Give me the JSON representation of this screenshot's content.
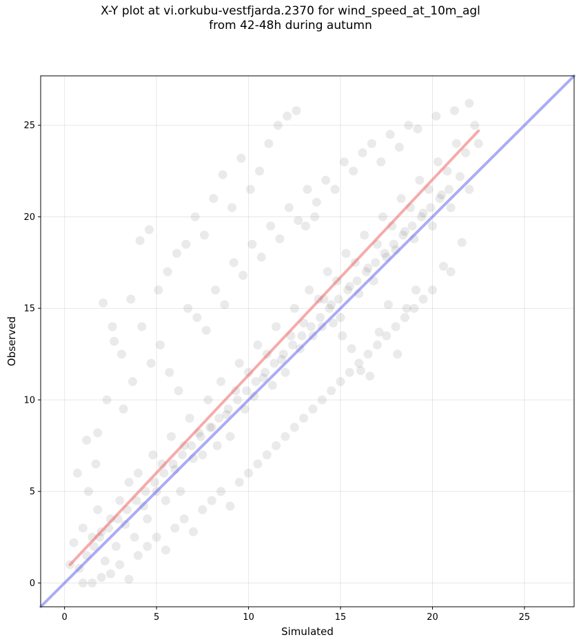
{
  "chart_data": {
    "type": "scatter",
    "title": "X-Y plot at vi.orkubu-vestfjarda.2370 for wind_speed_at_10m_agl",
    "subtitle": "from 42-48h during autumn",
    "xlabel": "Simulated",
    "ylabel": "Observed",
    "xlim": [
      -1.3,
      27.7
    ],
    "ylim": [
      -1.3,
      27.7
    ],
    "xticks": [
      0,
      5,
      10,
      15,
      20,
      25
    ],
    "yticks": [
      0,
      5,
      10,
      15,
      20,
      25
    ],
    "grid": true,
    "point_color": "#555555",
    "point_opacity": 0.12,
    "series": [
      {
        "type": "line",
        "color": "#6666ee",
        "x": [
          -1.3,
          27.7
        ],
        "y": [
          -1.3,
          27.7
        ]
      },
      {
        "type": "line",
        "color": "#ee6666",
        "x": [
          0.3,
          22.5
        ],
        "y": [
          1.0,
          24.7
        ]
      }
    ],
    "points": {
      "x": [
        0.3,
        0.5,
        0.8,
        1.0,
        1.2,
        1.5,
        1.8,
        2.0,
        2.2,
        2.5,
        2.8,
        3.0,
        3.3,
        3.5,
        3.8,
        4.0,
        4.3,
        4.5,
        4.8,
        5.0,
        5.3,
        5.5,
        5.8,
        6.0,
        6.3,
        6.5,
        6.8,
        7.0,
        7.3,
        7.5,
        7.8,
        8.0,
        8.3,
        8.5,
        8.8,
        9.0,
        9.3,
        9.5,
        9.8,
        10.0,
        10.3,
        10.5,
        10.8,
        11.0,
        11.3,
        11.5,
        11.8,
        12.0,
        12.3,
        12.5,
        12.8,
        13.0,
        13.3,
        13.5,
        13.8,
        14.0,
        14.3,
        14.5,
        14.8,
        15.0,
        15.3,
        15.5,
        15.8,
        16.0,
        16.3,
        16.5,
        16.8,
        17.0,
        17.3,
        17.5,
        17.8,
        18.0,
        18.3,
        18.5,
        18.8,
        19.0,
        19.3,
        19.5,
        19.8,
        20.0,
        20.3,
        20.5,
        20.8,
        21.0,
        21.3,
        21.5,
        21.8,
        22.0,
        22.3,
        22.5,
        1.0,
        1.5,
        2.0,
        2.5,
        3.0,
        3.5,
        4.0,
        4.5,
        5.0,
        5.5,
        6.0,
        6.5,
        7.0,
        7.5,
        8.0,
        8.5,
        9.0,
        9.5,
        10.0,
        10.5,
        11.0,
        11.5,
        12.0,
        12.5,
        13.0,
        13.5,
        14.0,
        14.5,
        15.0,
        15.5,
        16.0,
        16.5,
        17.0,
        17.5,
        18.0,
        18.5,
        19.0,
        19.5,
        20.0,
        21.0,
        1.2,
        1.8,
        2.3,
        2.7,
        3.2,
        3.7,
        4.2,
        4.7,
        5.2,
        5.7,
        6.2,
        6.7,
        7.2,
        7.7,
        8.2,
        8.7,
        9.2,
        9.7,
        10.2,
        10.7,
        11.2,
        11.7,
        12.2,
        12.7,
        13.2,
        13.7,
        14.2,
        14.7,
        15.2,
        15.7,
        16.2,
        16.7,
        17.2,
        17.7,
        18.2,
        18.7,
        19.2,
        20.2,
        21.2,
        22.0,
        0.7,
        1.3,
        1.7,
        2.1,
        2.6,
        3.1,
        3.6,
        4.1,
        4.6,
        5.1,
        5.6,
        6.1,
        6.6,
        7.1,
        7.6,
        8.1,
        8.6,
        9.1,
        9.6,
        10.1,
        10.6,
        11.1,
        11.6,
        12.1,
        12.6,
        13.1,
        13.6,
        14.1,
        14.6,
        15.1,
        15.6,
        16.1,
        16.6,
        17.1,
        17.6,
        18.1,
        18.6,
        19.1,
        20.6,
        21.6,
        1.6,
        2.4,
        3.4,
        4.4,
        5.4,
        6.4,
        7.4,
        8.4,
        9.4,
        10.4,
        11.4,
        12.4,
        13.4,
        14.4,
        15.4,
        16.4,
        17.4,
        18.4,
        19.4,
        20.4,
        1.9,
        2.9,
        3.9,
        4.9,
        5.9,
        6.9,
        7.9,
        8.9,
        9.9,
        10.9,
        11.9,
        12.9,
        13.9,
        14.9,
        15.9,
        16.9,
        17.9,
        18.9,
        19.9,
        20.9
      ],
      "y": [
        1.0,
        2.2,
        0.8,
        3.0,
        1.5,
        2.5,
        4.0,
        2.8,
        1.2,
        3.5,
        2.0,
        4.5,
        3.2,
        5.5,
        2.5,
        6.0,
        4.2,
        3.5,
        7.0,
        5.0,
        6.5,
        4.5,
        8.0,
        6.2,
        5.0,
        7.5,
        9.0,
        6.8,
        8.2,
        7.0,
        10.0,
        8.5,
        7.5,
        11.0,
        9.2,
        8.0,
        10.5,
        12.0,
        9.5,
        11.5,
        10.2,
        13.0,
        11.2,
        12.5,
        10.8,
        14.0,
        12.2,
        11.5,
        13.5,
        15.0,
        12.8,
        14.2,
        16.0,
        13.5,
        15.5,
        14.0,
        17.0,
        15.2,
        16.5,
        14.5,
        18.0,
        16.2,
        17.5,
        15.8,
        19.0,
        17.2,
        16.5,
        18.5,
        20.0,
        17.8,
        19.5,
        18.2,
        21.0,
        19.2,
        20.5,
        18.8,
        22.0,
        20.2,
        21.5,
        19.5,
        23.0,
        21.2,
        22.5,
        20.5,
        24.0,
        22.2,
        23.5,
        21.5,
        25.0,
        24.0,
        0.0,
        0.0,
        0.3,
        0.5,
        1.0,
        0.2,
        1.5,
        2.0,
        2.5,
        1.8,
        3.0,
        3.5,
        2.8,
        4.0,
        4.5,
        5.0,
        4.2,
        5.5,
        6.0,
        6.5,
        7.0,
        7.5,
        8.0,
        8.5,
        9.0,
        9.5,
        10.0,
        10.5,
        11.0,
        11.5,
        12.0,
        12.5,
        13.0,
        13.5,
        14.0,
        14.5,
        15.0,
        15.5,
        16.0,
        17.0,
        7.8,
        8.2,
        10.0,
        13.2,
        9.5,
        11.0,
        14.0,
        12.0,
        13.0,
        11.5,
        10.5,
        15.0,
        14.5,
        13.8,
        16.0,
        15.2,
        17.5,
        16.8,
        18.5,
        17.8,
        19.5,
        18.8,
        20.5,
        19.8,
        21.5,
        20.8,
        22.0,
        21.5,
        23.0,
        22.5,
        23.5,
        24.0,
        23.0,
        24.5,
        23.8,
        25.0,
        24.8,
        25.5,
        25.8,
        26.2,
        6.0,
        5.0,
        6.5,
        15.3,
        14.0,
        12.5,
        15.5,
        18.7,
        19.3,
        16.0,
        17.0,
        18.0,
        18.5,
        20.0,
        19.0,
        21.0,
        22.3,
        20.5,
        23.2,
        21.5,
        22.5,
        24.0,
        25.0,
        25.5,
        25.8,
        19.5,
        20.0,
        15.5,
        14.2,
        13.5,
        12.8,
        11.6,
        11.3,
        13.7,
        15.2,
        12.5,
        15.0,
        16.0,
        17.3,
        18.6,
        2.0,
        3.0,
        4.0,
        5.0,
        6.0,
        7.0,
        8.0,
        9.0,
        10.0,
        11.0,
        12.0,
        13.0,
        14.0,
        15.0,
        16.0,
        17.0,
        18.0,
        19.0,
        20.0,
        21.0,
        2.5,
        3.5,
        4.5,
        5.5,
        6.5,
        7.5,
        8.5,
        9.5,
        10.5,
        11.5,
        12.5,
        13.5,
        14.5,
        15.5,
        16.5,
        17.5,
        18.5,
        19.5,
        20.5,
        21.5
      ]
    }
  }
}
